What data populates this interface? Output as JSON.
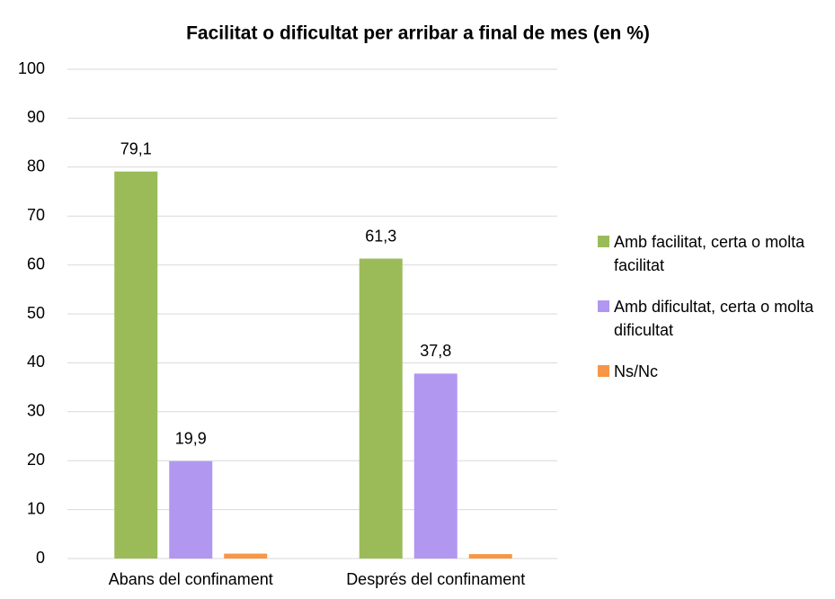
{
  "chart_data": {
    "type": "bar",
    "title": "Facilitat o dificultat per arribar a final de mes (en %)",
    "categories": [
      "Abans del confinament",
      "Després del confinament"
    ],
    "series": [
      {
        "name": "Amb facilitat, certa o molta facilitat",
        "color": "#9bbb59",
        "values": [
          79.1,
          61.3
        ],
        "value_labels": [
          "79,1",
          "61,3"
        ]
      },
      {
        "name": "Amb dificultat, certa o molta dificultat",
        "color": "#b197f0",
        "values": [
          19.9,
          37.8
        ],
        "value_labels": [
          "19,9",
          "37,8"
        ]
      },
      {
        "name": "Ns/Nc",
        "color": "#f79646",
        "values": [
          1.0,
          0.9
        ]
      }
    ],
    "ylim": [
      0,
      100
    ],
    "yticks": [
      0,
      10,
      20,
      30,
      40,
      50,
      60,
      70,
      80,
      90,
      100
    ],
    "grid": true,
    "legend": "right"
  }
}
